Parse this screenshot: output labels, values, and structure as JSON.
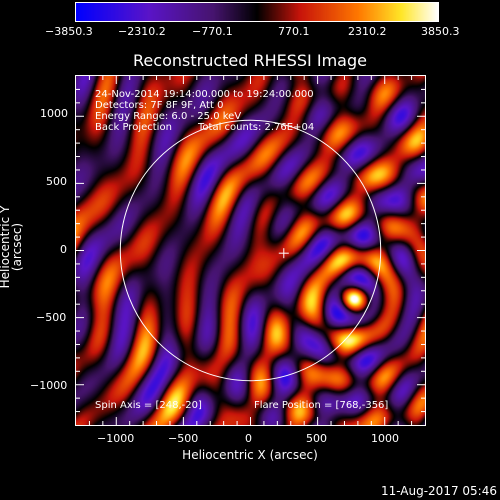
{
  "colorbar": {
    "labels": [
      "−3850.3",
      "−2310.2",
      "−770.1",
      "770.1",
      "2310.2",
      "3850.3"
    ],
    "range": [
      -3850.3,
      3850.3
    ]
  },
  "title": "Reconstructed RHESSI Image",
  "annotations": {
    "time": "24-Nov-2014 19:14:00.000 to 19:24:00.000",
    "detectors": "Detectors: 7F 8F 9F, Att 0",
    "energy": "Energy Range: 6.0 - 25.0 keV",
    "method": "Back Projection",
    "counts": "Total counts: 2.76E+04",
    "spin_axis": "Spin Axis = [248,-20]",
    "flare_position": "Flare Position = [768,-356]"
  },
  "axes": {
    "xlabel": "Heliocentric X (arcsec)",
    "ylabel": "Heliocentric Y (arcsec)",
    "xrange": [
      -1300,
      1300
    ],
    "yrange": [
      -1300,
      1300
    ],
    "xticks": [
      "−1000",
      "−500",
      "0",
      "500",
      "1000"
    ],
    "yticks": [
      "1000",
      "500",
      "0",
      "−500",
      "−1000"
    ],
    "xtick_values": [
      -1000,
      -500,
      0,
      500,
      1000
    ],
    "ytick_values": [
      1000,
      500,
      0,
      -500,
      -1000
    ]
  },
  "solar_disk": {
    "center": [
      0,
      0
    ],
    "radius": 970
  },
  "spin_axis": [
    248,
    -20
  ],
  "timestamp": "11-Aug-2017 05:46"
}
